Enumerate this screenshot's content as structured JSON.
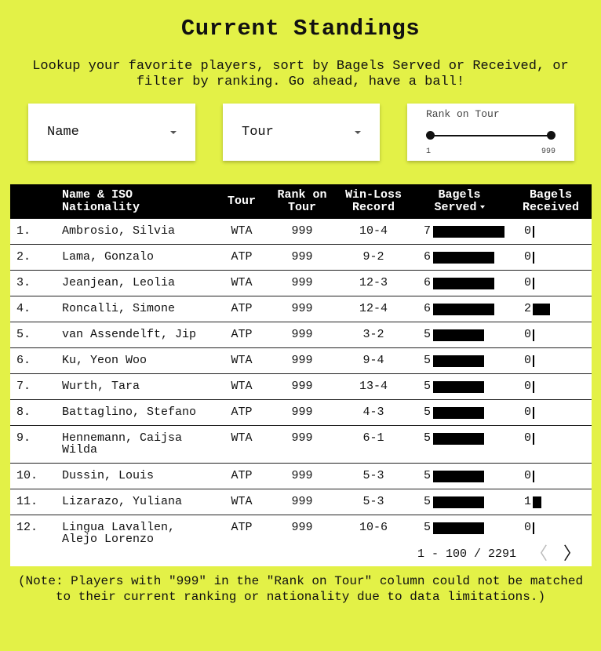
{
  "page": {
    "title": "Current Standings",
    "subtitle": "Lookup your favorite players, sort by Bagels Served or Received, or filter by ranking. Go ahead, have a ball!",
    "note": "(Note: Players with \"999\" in the \"Rank on Tour\" column could not be matched to their current ranking or nationality due to data limitations.)"
  },
  "filters": {
    "name_label": "Name",
    "tour_label": "Tour",
    "slider_label": "Rank on Tour",
    "slider_min": "1",
    "slider_max": "999"
  },
  "table": {
    "headers": {
      "name_l1": "Name & ISO",
      "name_l2": "Nationality",
      "tour": "Tour",
      "rank_l1": "Rank on",
      "rank_l2": "Tour",
      "wl_l1": "Win-Loss",
      "wl_l2": "Record",
      "served_l1": "Bagels",
      "served_l2": "Served",
      "received_l1": "Bagels",
      "received_l2": "Received"
    },
    "rows": [
      {
        "idx": "1.",
        "name": "Ambrosio, Silvia",
        "tour": "WTA",
        "rank": "999",
        "wl": "10-4",
        "served": 7,
        "received": 0
      },
      {
        "idx": "2.",
        "name": "Lama, Gonzalo",
        "tour": "ATP",
        "rank": "999",
        "wl": "9-2",
        "served": 6,
        "received": 0
      },
      {
        "idx": "3.",
        "name": "Jeanjean, Leolia",
        "tour": "WTA",
        "rank": "999",
        "wl": "12-3",
        "served": 6,
        "received": 0
      },
      {
        "idx": "4.",
        "name": "Roncalli, Simone",
        "tour": "ATP",
        "rank": "999",
        "wl": "12-4",
        "served": 6,
        "received": 2
      },
      {
        "idx": "5.",
        "name": "van Assendelft, Jip",
        "tour": "ATP",
        "rank": "999",
        "wl": "3-2",
        "served": 5,
        "received": 0
      },
      {
        "idx": "6.",
        "name": "Ku, Yeon Woo",
        "tour": "WTA",
        "rank": "999",
        "wl": "9-4",
        "served": 5,
        "received": 0
      },
      {
        "idx": "7.",
        "name": "Wurth, Tara",
        "tour": "WTA",
        "rank": "999",
        "wl": "13-4",
        "served": 5,
        "received": 0
      },
      {
        "idx": "8.",
        "name": "Battaglino, Stefano",
        "tour": "ATP",
        "rank": "999",
        "wl": "4-3",
        "served": 5,
        "received": 0
      },
      {
        "idx": "9.",
        "name": "Hennemann, Caijsa",
        "name2": "Wilda",
        "tour": "WTA",
        "rank": "999",
        "wl": "6-1",
        "served": 5,
        "received": 0
      },
      {
        "idx": "10.",
        "name": "Dussin, Louis",
        "tour": "ATP",
        "rank": "999",
        "wl": "5-3",
        "served": 5,
        "received": 0
      },
      {
        "idx": "11.",
        "name": "Lizarazo, Yuliana",
        "tour": "WTA",
        "rank": "999",
        "wl": "5-3",
        "served": 5,
        "received": 1
      },
      {
        "idx": "12.",
        "name": "Lingua Lavallen,",
        "name2": "Alejo Lorenzo",
        "tour": "ATP",
        "rank": "999",
        "wl": "10-6",
        "served": 5,
        "received": 0
      }
    ]
  },
  "pagination": {
    "text": "1 - 100 / 2291",
    "prev_icon": "chevron-left-icon",
    "next_icon": "chevron-right-icon"
  },
  "colors": {
    "background": "#e3f147",
    "header": "#000000",
    "bar": "#000000"
  }
}
